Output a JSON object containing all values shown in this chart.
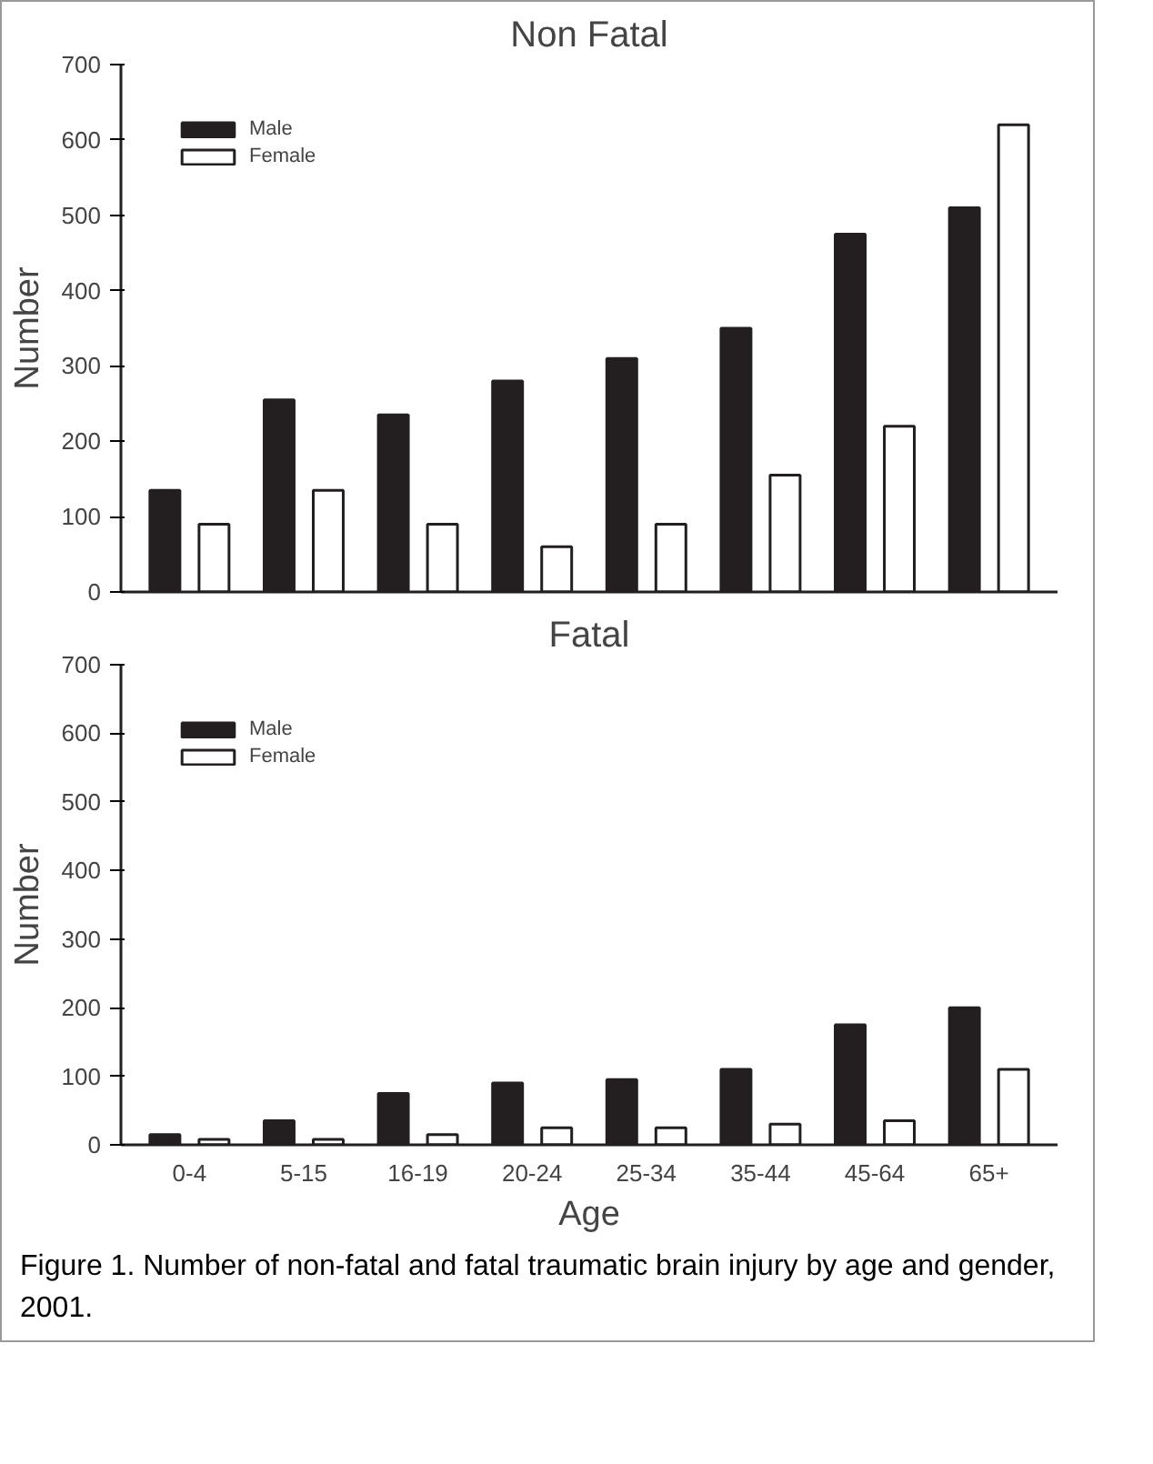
{
  "chart_data": [
    {
      "type": "bar",
      "title": "Non Fatal",
      "ylabel": "Number",
      "categories": [
        null,
        null,
        null,
        null,
        null,
        null,
        null,
        null
      ],
      "ylim": [
        0,
        700
      ],
      "yticks": [
        0,
        100,
        200,
        300,
        400,
        500,
        600,
        700
      ],
      "grid": false,
      "legend": "top left",
      "series": [
        {
          "name": "Male",
          "color": "#231f20",
          "values": [
            135,
            255,
            235,
            280,
            310,
            350,
            475,
            510
          ]
        },
        {
          "name": "Female",
          "color": "#ffffff",
          "values": [
            90,
            135,
            90,
            60,
            90,
            155,
            220,
            620
          ]
        }
      ]
    },
    {
      "type": "bar",
      "title": "Fatal",
      "ylabel": "Number",
      "xlabel": "Age",
      "categories": [
        "0-4",
        "5-15",
        "16-19",
        "20-24",
        "25-34",
        "35-44",
        "45-64",
        "65+"
      ],
      "ylim": [
        0,
        700
      ],
      "yticks": [
        0,
        100,
        200,
        300,
        400,
        500,
        600,
        700
      ],
      "grid": false,
      "legend": "top left",
      "series": [
        {
          "name": "Male",
          "color": "#231f20",
          "values": [
            15,
            35,
            75,
            90,
            95,
            110,
            175,
            200
          ]
        },
        {
          "name": "Female",
          "color": "#ffffff",
          "values": [
            8,
            8,
            15,
            25,
            25,
            30,
            35,
            110
          ]
        }
      ],
      "annotations": [
        "Figure 1.  Number of non-fatal and fatal traumatic brain injury by age and gender, 2001."
      ]
    }
  ]
}
